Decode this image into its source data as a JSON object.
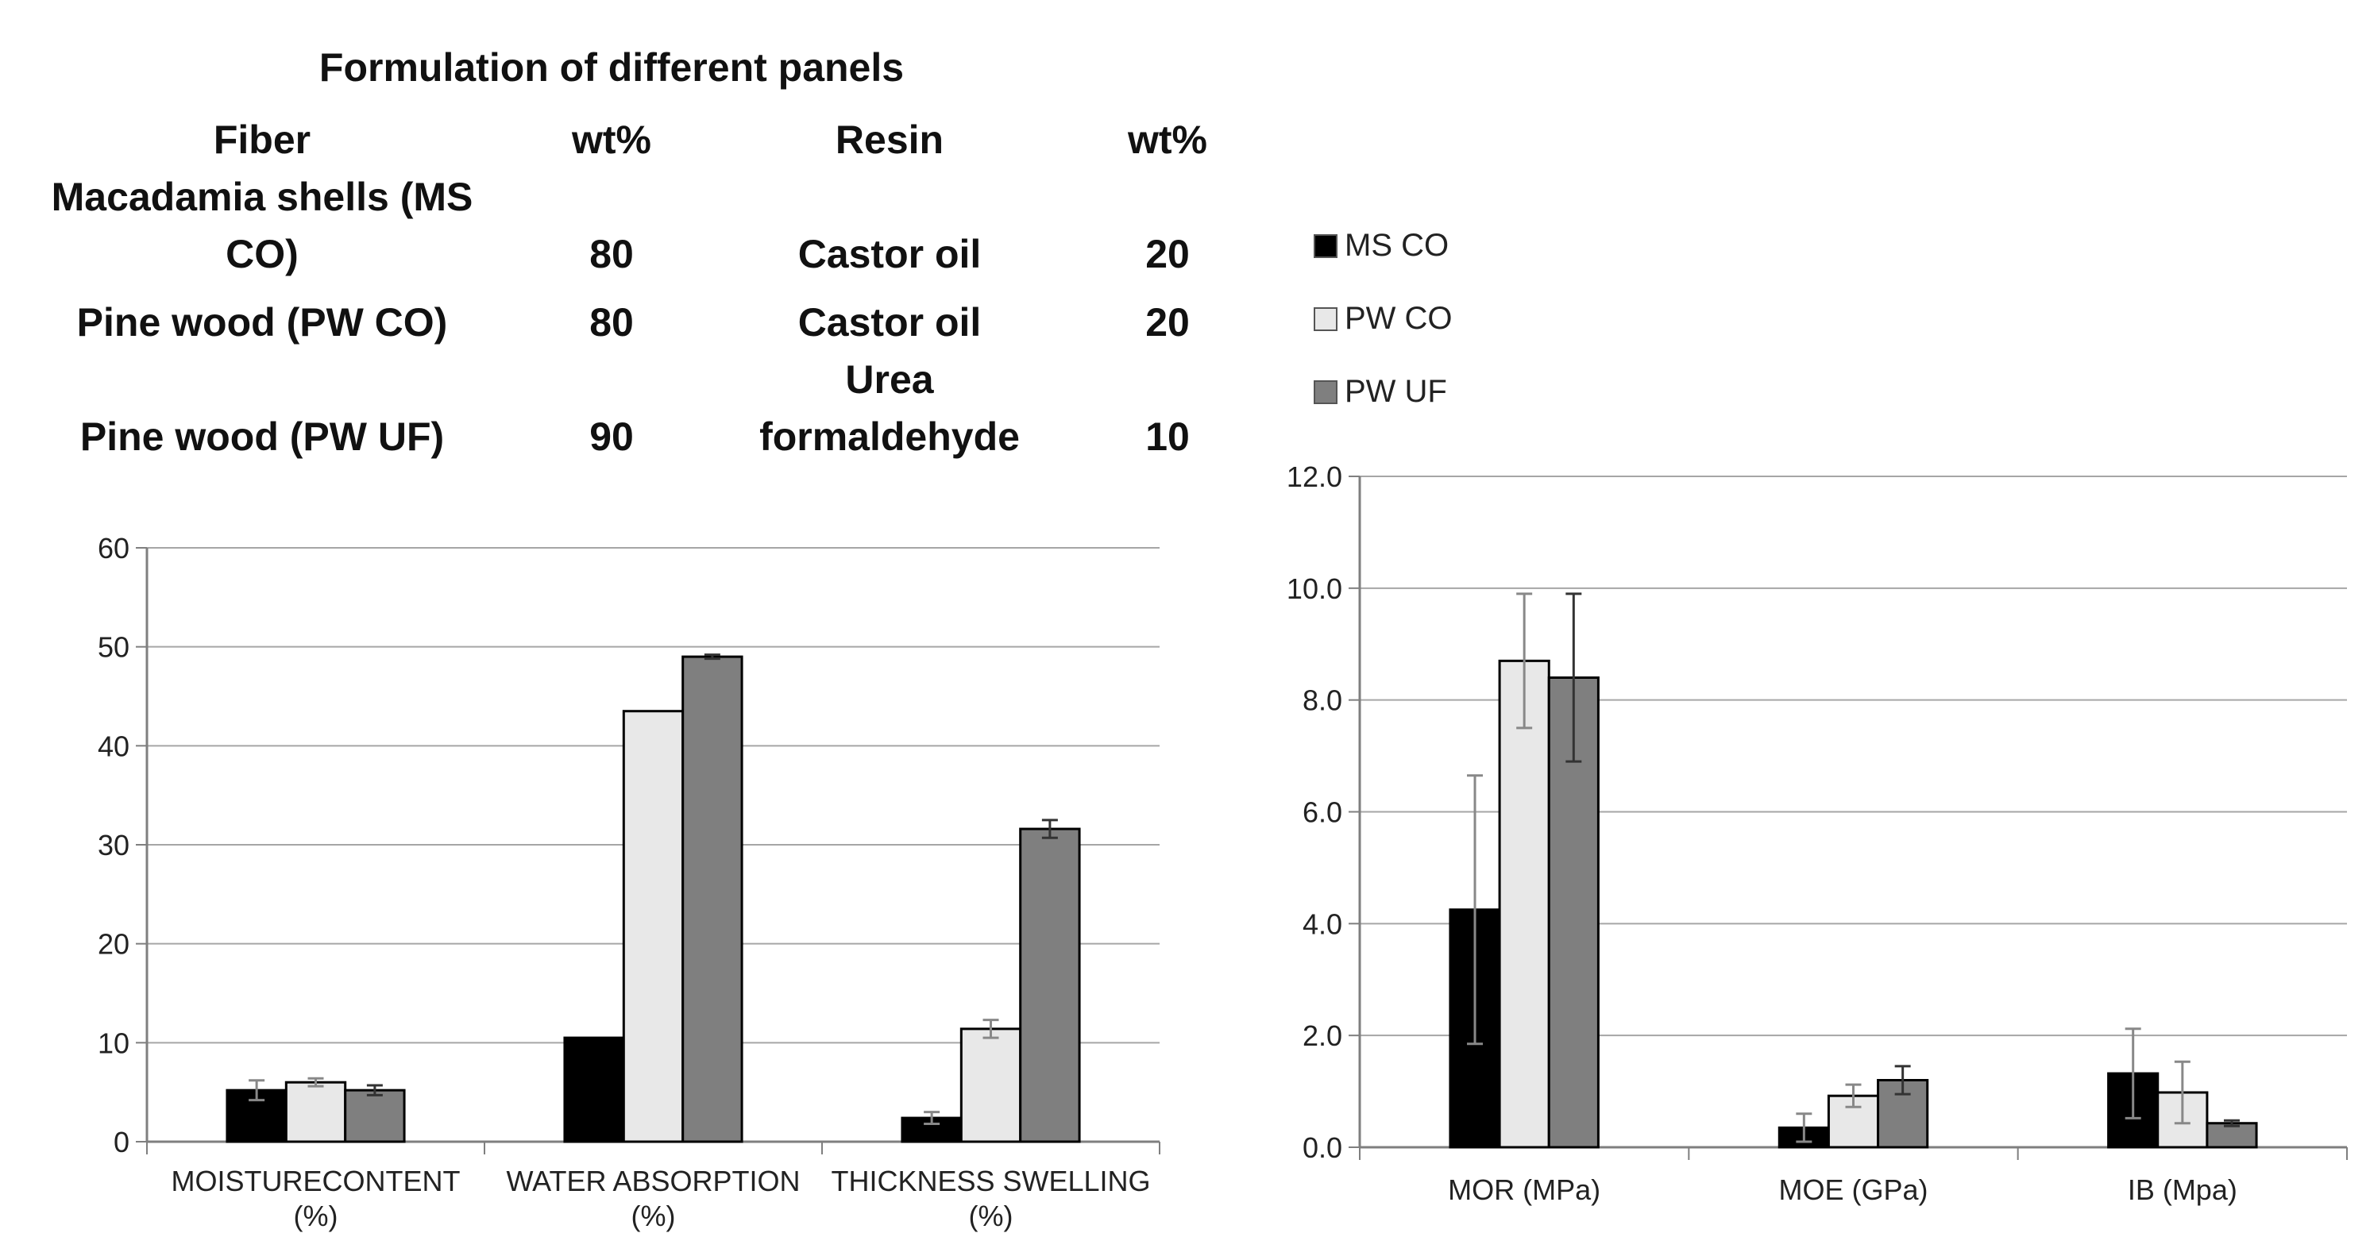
{
  "table": {
    "title": "Formulation of different panels",
    "headers": [
      "Fiber",
      "wt%",
      "Resin",
      "wt%"
    ],
    "rows": [
      {
        "fiber_line1": "Macadamia shells (MS",
        "fiber_line2": "CO)",
        "fiber_wt": "80",
        "resin_line1": "",
        "resin_line2": "Castor oil",
        "resin_wt": "20"
      },
      {
        "fiber_line1": "",
        "fiber_line2": "Pine wood (PW CO)",
        "fiber_wt": "80",
        "resin_line1": "",
        "resin_line2": "Castor oil",
        "resin_wt": "20"
      },
      {
        "fiber_line1": "",
        "fiber_line2": "Pine wood (PW UF)",
        "fiber_wt": "90",
        "resin_line1": "Urea",
        "resin_line2": "formaldehyde",
        "resin_wt": "10"
      }
    ]
  },
  "colors": {
    "ms_co": "#000000",
    "pw_co": "#e8e8e8",
    "pw_uf": "#7f7f7f",
    "grid": "#a6a6a6",
    "axis": "#7f7f7f"
  },
  "chart_data": [
    {
      "type": "bar",
      "title": "",
      "categories": [
        [
          "MOISTURECONTENT",
          "(%)"
        ],
        [
          "WATER ABSORPTION",
          "(%)"
        ],
        [
          "THICKNESS SWELLING",
          "(%)"
        ]
      ],
      "series": [
        {
          "name": "MS CO",
          "values": [
            5.2,
            10.5,
            2.4
          ],
          "errors": [
            1.0,
            0,
            0.6
          ]
        },
        {
          "name": "PW CO",
          "values": [
            6.0,
            43.5,
            11.4
          ],
          "errors": [
            0.4,
            0,
            0.9
          ]
        },
        {
          "name": "PW UF",
          "values": [
            5.2,
            49.0,
            31.6
          ],
          "errors": [
            0.5,
            0.2,
            0.9
          ]
        }
      ],
      "yticks": [
        "0",
        "10",
        "20",
        "30",
        "40",
        "50",
        "60"
      ],
      "ylim": [
        0,
        60
      ],
      "xlabel": "",
      "ylabel": ""
    },
    {
      "type": "bar",
      "title": "",
      "categories": [
        [
          "MOR (MPa)"
        ],
        [
          "MOE (GPa)"
        ],
        [
          "IB (Mpa)"
        ]
      ],
      "series": [
        {
          "name": "MS CO",
          "values": [
            4.25,
            0.35,
            1.32
          ],
          "errors": [
            2.4,
            0.25,
            0.8
          ]
        },
        {
          "name": "PW CO",
          "values": [
            8.7,
            0.92,
            0.98
          ],
          "errors": [
            1.2,
            0.2,
            0.55
          ]
        },
        {
          "name": "PW UF",
          "values": [
            8.4,
            1.2,
            0.43
          ],
          "errors": [
            1.5,
            0.25,
            0.05
          ]
        }
      ],
      "yticks": [
        "0.0",
        "2.0",
        "4.0",
        "6.0",
        "8.0",
        "10.0",
        "12.0"
      ],
      "ylim": [
        0,
        12
      ],
      "legend": [
        "MS CO",
        "PW CO",
        "PW UF"
      ],
      "legend_position": "top-left",
      "xlabel": "",
      "ylabel": ""
    }
  ]
}
